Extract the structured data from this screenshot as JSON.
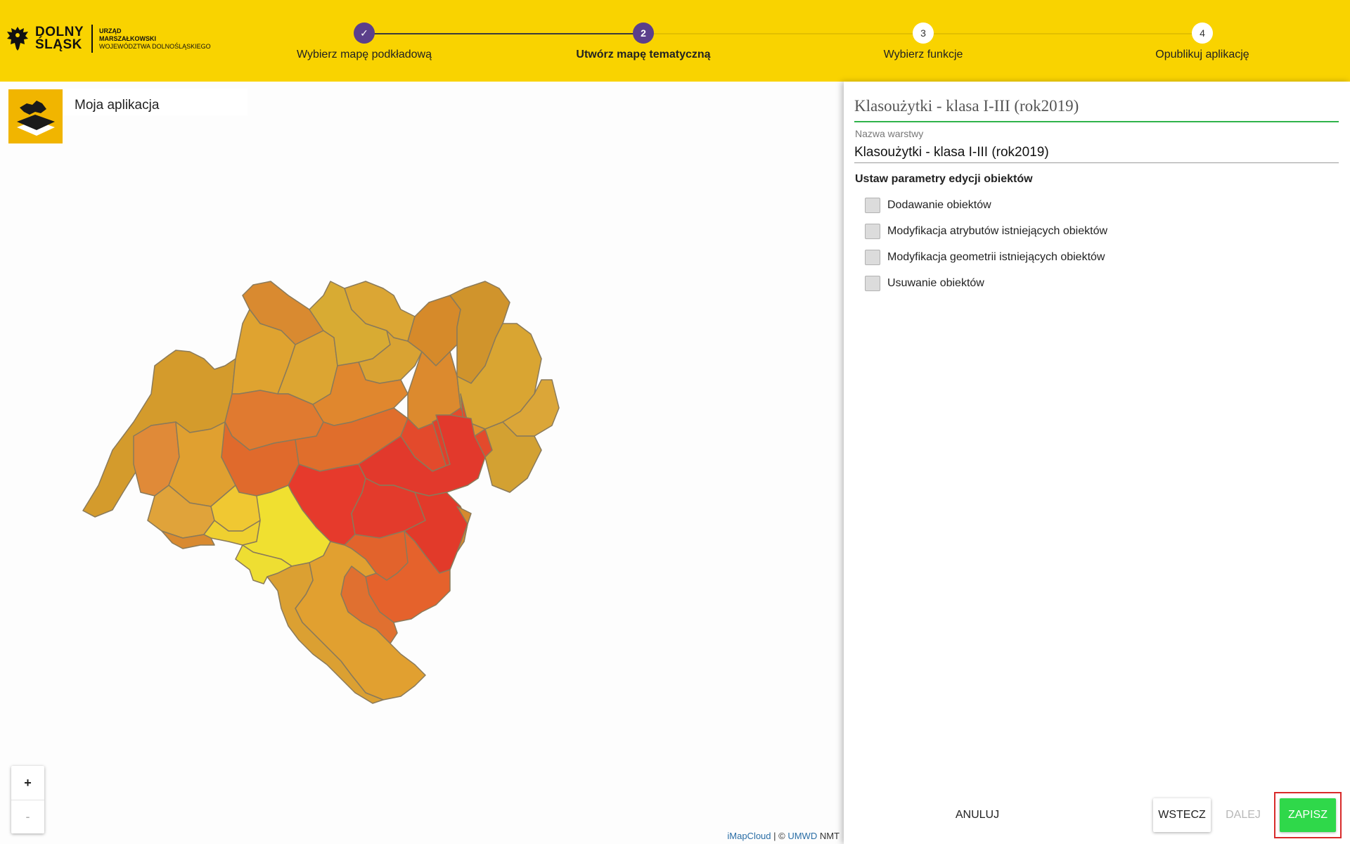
{
  "logo": {
    "name_line1": "DOLNY",
    "name_line2": "ŚLĄSK",
    "office_line1": "URZĄD",
    "office_line2": "MARSZAŁKOWSKI",
    "office_line3": "WOJEWÓDZTWA DOLNOŚLĄSKIEGO"
  },
  "stepper": {
    "steps": [
      {
        "number": "✓",
        "label": "Wybierz mapę podkładową",
        "state": "done"
      },
      {
        "number": "2",
        "label": "Utwórz mapę tematyczną",
        "state": "active"
      },
      {
        "number": "3",
        "label": "Wybierz funkcje",
        "state": "todo"
      },
      {
        "number": "4",
        "label": "Opublikuj aplikację",
        "state": "todo"
      }
    ],
    "colors": {
      "bar": "#f9d300",
      "active": "#5b3f8b"
    }
  },
  "map": {
    "app_title": "Moja aplikacja",
    "zoom_in": "+",
    "zoom_out": "-",
    "attribution": {
      "link1": "iMapCloud",
      "sep": " | © ",
      "link2": "UMWD",
      "suffix": " NMT"
    }
  },
  "panel": {
    "title": "Klasoużytki - klasa I-III (rok2019)",
    "layer_name_label": "Nazwa warstwy",
    "layer_name_value": "Klasoużytki - klasa I-III (rok2019)",
    "section_title": "Ustaw parametry edycji obiektów",
    "checkboxes": [
      {
        "label": "Dodawanie obiektów",
        "checked": false
      },
      {
        "label": "Modyfikacja atrybutów istniejących obiektów",
        "checked": false
      },
      {
        "label": "Modyfikacja geometrii istniejących obiektów",
        "checked": false
      },
      {
        "label": "Usuwanie obiektów",
        "checked": false
      }
    ],
    "buttons": {
      "cancel": "ANULUJ",
      "back": "WSTECZ",
      "next": "DALEJ",
      "save": "ZAPISZ"
    },
    "colors": {
      "save": "#2fd84a",
      "highlight": "#d82a2a",
      "title_underline": "#2fb34a"
    }
  }
}
